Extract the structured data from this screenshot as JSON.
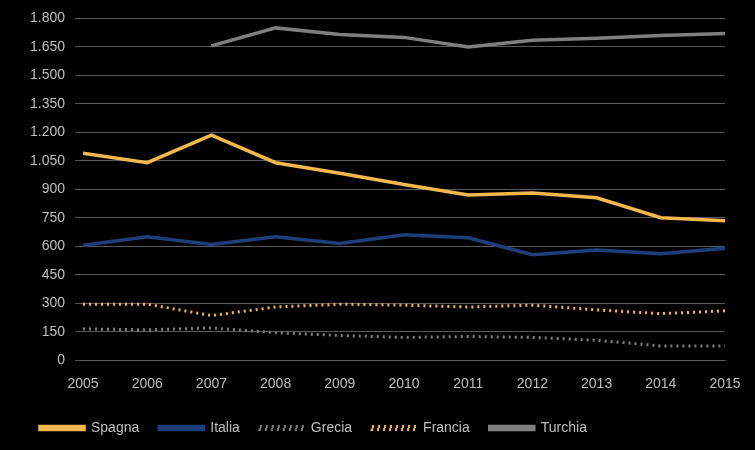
{
  "chart_data": {
    "type": "line",
    "categories": [
      "2005",
      "2006",
      "2007",
      "2008",
      "2009",
      "2010",
      "2011",
      "2012",
      "2013",
      "2014",
      "2015"
    ],
    "series": [
      {
        "name": "Spagna",
        "color": "#f2b84b",
        "line_style": "solid",
        "values": [
          1090,
          1040,
          1185,
          1040,
          985,
          925,
          870,
          880,
          855,
          750,
          735
        ]
      },
      {
        "name": "Italia",
        "color": "#1f3f7a",
        "line_style": "solid",
        "values": [
          605,
          650,
          610,
          650,
          615,
          660,
          645,
          555,
          580,
          560,
          590
        ]
      },
      {
        "name": "Grecia",
        "color": "#7f7f7f",
        "line_style": "dotted",
        "values": [
          165,
          160,
          170,
          145,
          130,
          120,
          125,
          120,
          105,
          75,
          75
        ]
      },
      {
        "name": "Francia",
        "color": "#f2b84b",
        "line_style": "dotted",
        "values": [
          295,
          295,
          235,
          280,
          295,
          290,
          280,
          290,
          265,
          245,
          260
        ]
      },
      {
        "name": "Turchia",
        "color": "#7f7f7f",
        "line_style": "solid",
        "values": [
          null,
          null,
          1655,
          1750,
          1715,
          1700,
          1650,
          1685,
          1695,
          1710,
          1720
        ]
      }
    ],
    "ylim": [
      0,
      1800
    ],
    "yticks": [
      0,
      150,
      300,
      450,
      600,
      750,
      900,
      {
        "value": 1050,
        "label": "1.050"
      },
      {
        "value": 1200,
        "label": "1.200"
      },
      {
        "value": 1350,
        "label": "1.350"
      },
      {
        "value": 1500,
        "label": "1.500"
      },
      {
        "value": 1650,
        "label": "1.650"
      },
      {
        "value": 1800,
        "label": "1.800"
      }
    ],
    "grid": true,
    "legend": "bottom"
  }
}
